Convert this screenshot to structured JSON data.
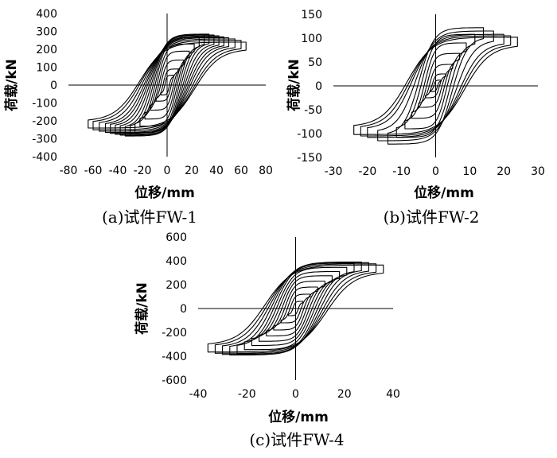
{
  "chart_data": [
    {
      "type": "line",
      "caption": "(a)试件FW-1",
      "xlabel": "位移/mm",
      "ylabel": "荷载/kN",
      "xlim": [
        -80,
        80
      ],
      "ylim": [
        -400,
        400
      ],
      "xticks": [
        -80,
        -60,
        -40,
        -20,
        0,
        20,
        40,
        60,
        80
      ],
      "yticks": [
        -400,
        -300,
        -200,
        -100,
        0,
        100,
        200,
        300,
        400
      ],
      "hysteresis_loops": [
        {
          "d": 5,
          "p": 55
        },
        {
          "d": 9,
          "p": 90
        },
        {
          "d": 14,
          "p": 140
        },
        {
          "d": 18,
          "p": 190
        },
        {
          "d": 22,
          "p": 230
        },
        {
          "d": 26,
          "p": 265
        },
        {
          "d": 30,
          "p": 280
        },
        {
          "d": 34,
          "p": 285
        },
        {
          "d": 38,
          "p": 280
        },
        {
          "d": 42,
          "p": 275
        },
        {
          "d": 46,
          "p": 270
        },
        {
          "d": 50,
          "p": 265
        },
        {
          "d": 55,
          "p": 258
        },
        {
          "d": 60,
          "p": 250
        },
        {
          "d": 64,
          "p": 240
        }
      ]
    },
    {
      "type": "line",
      "caption": "(b)试件FW-2",
      "xlabel": "位移/mm",
      "ylabel": "荷载/kN",
      "xlim": [
        -30,
        30
      ],
      "ylim": [
        -150,
        150
      ],
      "xticks": [
        -30,
        -20,
        -10,
        0,
        10,
        20,
        30
      ],
      "yticks": [
        -150,
        -100,
        -50,
        0,
        50,
        100,
        150
      ],
      "hysteresis_loops": [
        {
          "d": 1.5,
          "p": 12
        },
        {
          "d": 3,
          "p": 25
        },
        {
          "d": 5,
          "p": 45
        },
        {
          "d": 7,
          "p": 68
        },
        {
          "d": 9,
          "p": 90
        },
        {
          "d": 11.5,
          "p": 108
        },
        {
          "d": 14,
          "p": 122
        },
        {
          "d": 17,
          "p": 115
        },
        {
          "d": 20,
          "p": 108
        },
        {
          "d": 22,
          "p": 105
        },
        {
          "d": 24,
          "p": 102
        }
      ]
    },
    {
      "type": "line",
      "caption": "(c)试件FW-4",
      "xlabel": "位移/mm",
      "ylabel": "荷载/kN",
      "xlim": [
        -40,
        40
      ],
      "ylim": [
        -600,
        600
      ],
      "xticks": [
        -40,
        -20,
        0,
        20,
        40
      ],
      "yticks": [
        -600,
        -400,
        -200,
        0,
        200,
        400,
        600
      ],
      "hysteresis_loops": [
        {
          "d": 3,
          "p": 60
        },
        {
          "d": 6,
          "p": 120
        },
        {
          "d": 9,
          "p": 180
        },
        {
          "d": 12,
          "p": 230
        },
        {
          "d": 15,
          "p": 275
        },
        {
          "d": 18,
          "p": 310
        },
        {
          "d": 21,
          "p": 345
        },
        {
          "d": 24,
          "p": 380
        },
        {
          "d": 27,
          "p": 390
        },
        {
          "d": 30,
          "p": 385
        },
        {
          "d": 33,
          "p": 375
        },
        {
          "d": 36,
          "p": 365
        }
      ]
    }
  ]
}
